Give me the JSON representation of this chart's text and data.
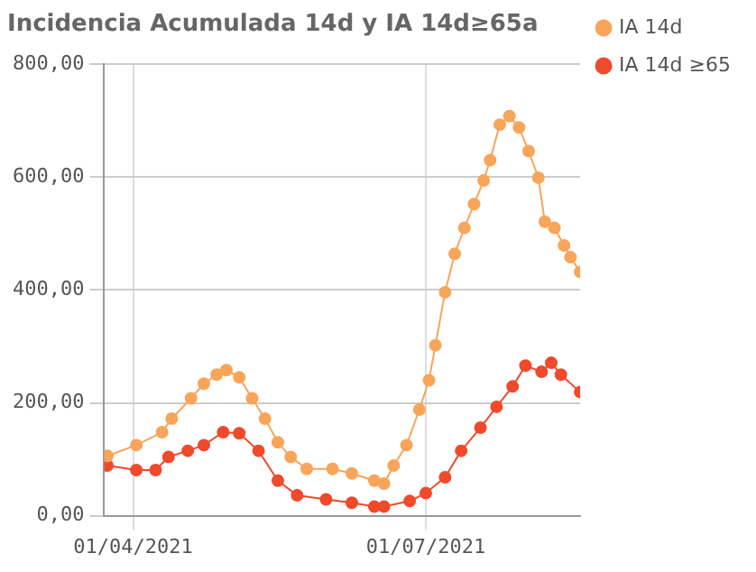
{
  "chart_data": {
    "type": "line",
    "title": "Incidencia Acumulada 14d y IA 14d≥65a",
    "xlim": [
      "2021-03-23",
      "2021-08-18"
    ],
    "xticks": [
      {
        "value": "2021-04-01",
        "label": "01/04/2021"
      },
      {
        "value": "2021-07-01",
        "label": "01/07/2021"
      }
    ],
    "ylim": [
      0,
      800
    ],
    "yticks": [
      {
        "value": 0,
        "label": "0,00"
      },
      {
        "value": 200,
        "label": "200,00"
      },
      {
        "value": 400,
        "label": "400,00"
      },
      {
        "value": 600,
        "label": "600,00"
      },
      {
        "value": 800,
        "label": "800,00"
      }
    ],
    "grid": true,
    "legend": "top right",
    "marker": "circle",
    "line_style": "solid",
    "series": [
      {
        "name": "IA 14d",
        "color": "#f8a55a",
        "x": [
          "2021-03-24",
          "2021-04-02",
          "2021-04-10",
          "2021-04-13",
          "2021-04-19",
          "2021-04-23",
          "2021-04-27",
          "2021-04-30",
          "2021-05-04",
          "2021-05-08",
          "2021-05-12",
          "2021-05-16",
          "2021-05-20",
          "2021-05-25",
          "2021-06-02",
          "2021-06-08",
          "2021-06-15",
          "2021-06-18",
          "2021-06-21",
          "2021-06-25",
          "2021-06-29",
          "2021-07-02",
          "2021-07-04",
          "2021-07-07",
          "2021-07-10",
          "2021-07-13",
          "2021-07-16",
          "2021-07-19",
          "2021-07-21",
          "2021-07-24",
          "2021-07-27",
          "2021-07-30",
          "2021-08-02",
          "2021-08-05",
          "2021-08-07",
          "2021-08-10",
          "2021-08-13",
          "2021-08-15",
          "2021-08-18"
        ],
        "values": [
          106,
          125,
          148,
          172,
          208,
          234,
          250,
          258,
          245,
          208,
          172,
          130,
          104,
          83,
          83,
          75,
          62,
          57,
          89,
          125,
          188,
          240,
          302,
          396,
          464,
          510,
          552,
          594,
          630,
          693,
          708,
          688,
          646,
          599,
          521,
          510,
          479,
          458,
          432
        ]
      },
      {
        "name": "IA 14d ≥65",
        "color": "#f04a2c",
        "x": [
          "2021-03-24",
          "2021-04-02",
          "2021-04-08",
          "2021-04-12",
          "2021-04-18",
          "2021-04-23",
          "2021-04-29",
          "2021-05-04",
          "2021-05-10",
          "2021-05-16",
          "2021-05-22",
          "2021-05-31",
          "2021-06-08",
          "2021-06-15",
          "2021-06-18",
          "2021-06-26",
          "2021-07-01",
          "2021-07-07",
          "2021-07-12",
          "2021-07-18",
          "2021-07-23",
          "2021-07-28",
          "2021-08-01",
          "2021-08-06",
          "2021-08-09",
          "2021-08-12",
          "2021-08-18"
        ],
        "values": [
          89,
          81,
          81,
          104,
          115,
          125,
          148,
          146,
          115,
          62,
          36,
          29,
          23,
          16,
          16,
          26,
          40,
          68,
          115,
          156,
          193,
          229,
          266,
          255,
          271,
          250,
          219
        ]
      }
    ]
  }
}
